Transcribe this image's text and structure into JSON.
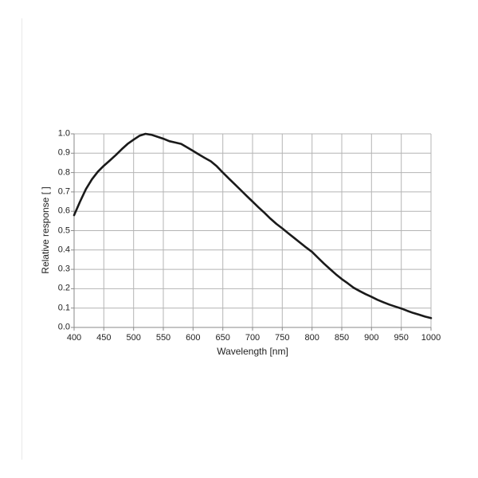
{
  "chart_data": {
    "type": "line",
    "title": "",
    "xlabel": "Wavelength [nm]",
    "ylabel": "Relative response [ ]",
    "xlim": [
      400,
      1000
    ],
    "ylim": [
      0.0,
      1.0
    ],
    "x_ticks": [
      400,
      450,
      500,
      550,
      600,
      650,
      700,
      750,
      800,
      850,
      900,
      950,
      1000
    ],
    "y_tick_labels": [
      "0.0",
      "0.1",
      "0.2",
      "0.3",
      "0.4",
      "0.5",
      "0.6",
      "0.7",
      "0.8",
      "0.9",
      "1.0"
    ],
    "grid": true,
    "legend": false,
    "colors": {
      "line": "#1a1a1a",
      "grid": "#b4b4b4",
      "axis": "#8a8a8a",
      "label": "#222222"
    },
    "series": [
      {
        "name": "relative-response",
        "x": [
          400,
          410,
          420,
          430,
          440,
          450,
          460,
          470,
          480,
          490,
          500,
          510,
          520,
          530,
          540,
          550,
          560,
          570,
          580,
          590,
          600,
          610,
          620,
          630,
          640,
          650,
          660,
          670,
          680,
          690,
          700,
          710,
          720,
          730,
          740,
          750,
          760,
          770,
          780,
          790,
          800,
          810,
          820,
          830,
          840,
          850,
          860,
          870,
          880,
          890,
          900,
          910,
          920,
          930,
          940,
          950,
          960,
          970,
          980,
          990,
          1000
        ],
        "y": [
          0.58,
          0.65,
          0.715,
          0.765,
          0.805,
          0.835,
          0.862,
          0.89,
          0.92,
          0.948,
          0.97,
          0.99,
          1.0,
          0.995,
          0.985,
          0.975,
          0.962,
          0.955,
          0.948,
          0.93,
          0.912,
          0.893,
          0.875,
          0.858,
          0.832,
          0.8,
          0.77,
          0.74,
          0.71,
          0.68,
          0.65,
          0.62,
          0.592,
          0.562,
          0.535,
          0.512,
          0.487,
          0.462,
          0.438,
          0.413,
          0.39,
          0.36,
          0.33,
          0.302,
          0.275,
          0.25,
          0.228,
          0.205,
          0.188,
          0.172,
          0.158,
          0.143,
          0.13,
          0.118,
          0.108,
          0.098,
          0.086,
          0.075,
          0.066,
          0.056,
          0.048
        ]
      }
    ]
  }
}
